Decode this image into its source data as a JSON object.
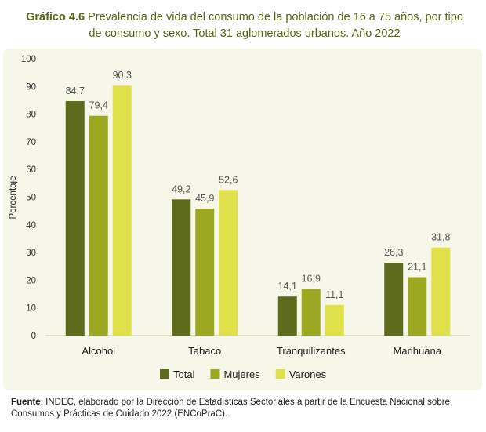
{
  "title": {
    "label": "Gráfico 4.6",
    "line1": "Prevalencia de vida del consumo de la población de 16 a 75 años, por tipo",
    "line2": "de consumo y sexo. Total 31 aglomerados urbanos. Año 2022"
  },
  "source": {
    "label": "Fuente",
    "line1": ": INDEC, elaborado por la Dirección de Estadísticas Sectoriales a partir de la Encuesta Nacional sobre",
    "line2": "Consumos y Prácticas de Cuidado 2022 (ENCoPraC)."
  },
  "chart_data": {
    "type": "bar",
    "title": "",
    "xlabel": "",
    "ylabel": "Porcentaje",
    "ylim": [
      0,
      100
    ],
    "yticks": [
      0,
      10,
      20,
      30,
      40,
      50,
      60,
      70,
      80,
      90,
      100
    ],
    "grid": false,
    "legend": "bottom",
    "categories": [
      "Alcohol",
      "Tabaco",
      "Tranquilizantes",
      "Marihuana"
    ],
    "series": [
      {
        "name": "Total",
        "color": "#5f6b1c",
        "values": [
          84.7,
          49.2,
          14.1,
          26.3
        ],
        "labels": [
          "84,7",
          "49,2",
          "14,1",
          "26,3"
        ]
      },
      {
        "name": "Mujeres",
        "color": "#9ca822",
        "values": [
          79.4,
          45.9,
          16.9,
          21.1
        ],
        "labels": [
          "79,4",
          "45,9",
          "16,9",
          "21,1"
        ]
      },
      {
        "name": "Varones",
        "color": "#e0e04a",
        "values": [
          90.3,
          52.6,
          11.1,
          31.8
        ],
        "labels": [
          "90,3",
          "52,6",
          "11,1",
          "31,8"
        ]
      }
    ]
  }
}
